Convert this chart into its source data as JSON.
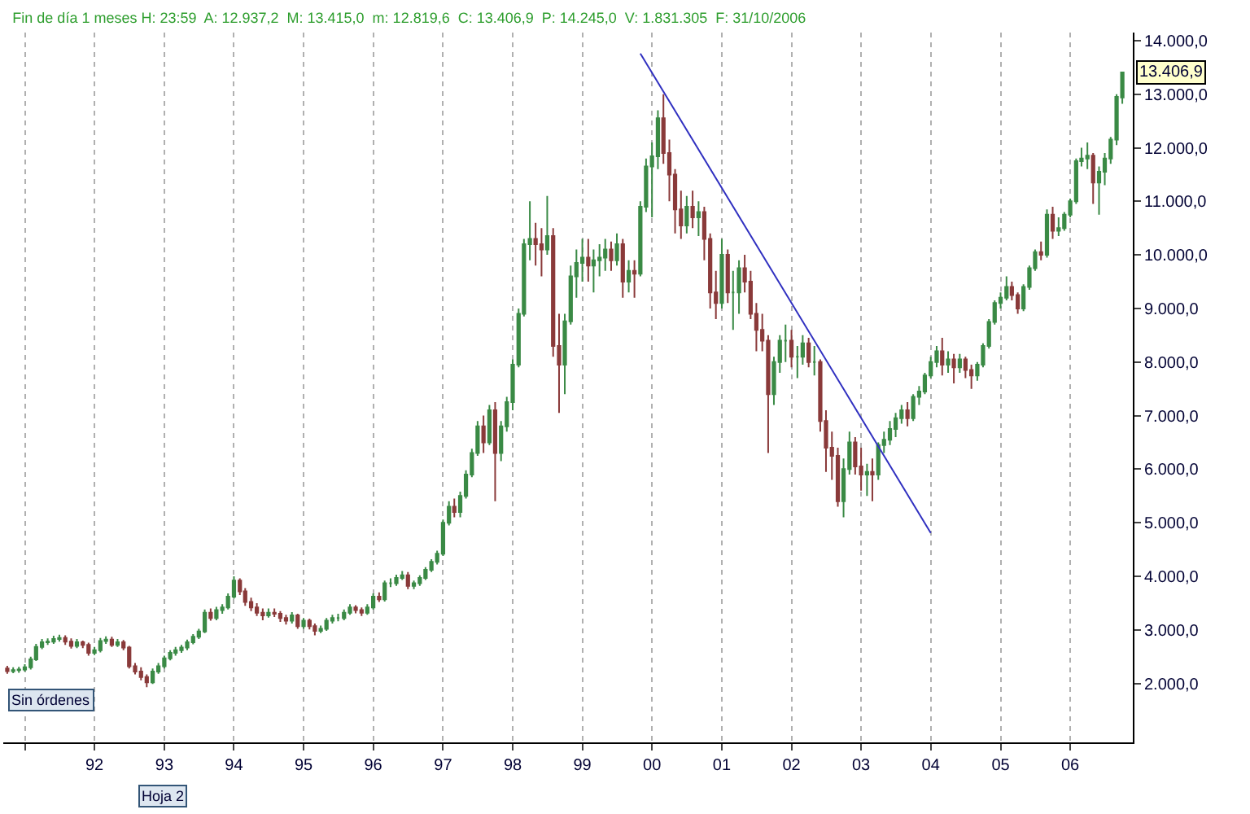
{
  "chart_data": {
    "type": "candlestick",
    "title": "Fin de día 1 meses H: 23:59  A: 12.937,2  M: 13.415,0  m: 12.819,6  C: 13.406,9  P: 14.245,0  V: 1.831.305  F: 31/10/2006",
    "x": [
      "1990-10",
      "1990-11",
      "1990-12",
      "1991-01",
      "1991-02",
      "1991-03",
      "1991-04",
      "1991-05",
      "1991-06",
      "1991-07",
      "1991-08",
      "1991-09",
      "1991-10",
      "1991-11",
      "1991-12",
      "1992-01",
      "1992-02",
      "1992-03",
      "1992-04",
      "1992-05",
      "1992-06",
      "1992-07",
      "1992-08",
      "1992-09",
      "1992-10",
      "1992-11",
      "1992-12",
      "1993-01",
      "1993-02",
      "1993-03",
      "1993-04",
      "1993-05",
      "1993-06",
      "1993-07",
      "1993-08",
      "1993-09",
      "1993-10",
      "1993-11",
      "1993-12",
      "1994-01",
      "1994-02",
      "1994-03",
      "1994-04",
      "1994-05",
      "1994-06",
      "1994-07",
      "1994-08",
      "1994-09",
      "1994-10",
      "1994-11",
      "1994-12",
      "1995-01",
      "1995-02",
      "1995-03",
      "1995-04",
      "1995-05",
      "1995-06",
      "1995-07",
      "1995-08",
      "1995-09",
      "1995-10",
      "1995-11",
      "1995-12",
      "1996-01",
      "1996-02",
      "1996-03",
      "1996-04",
      "1996-05",
      "1996-06",
      "1996-07",
      "1996-08",
      "1996-09",
      "1996-10",
      "1996-11",
      "1996-12",
      "1997-01",
      "1997-02",
      "1997-03",
      "1997-04",
      "1997-05",
      "1997-06",
      "1997-07",
      "1997-08",
      "1997-09",
      "1997-10",
      "1997-11",
      "1997-12",
      "1998-01",
      "1998-02",
      "1998-03",
      "1998-04",
      "1998-05",
      "1998-06",
      "1998-07",
      "1998-08",
      "1998-09",
      "1998-10",
      "1998-11",
      "1998-12",
      "1999-01",
      "1999-02",
      "1999-03",
      "1999-04",
      "1999-05",
      "1999-06",
      "1999-07",
      "1999-08",
      "1999-09",
      "1999-10",
      "1999-11",
      "1999-12",
      "2000-01",
      "2000-02",
      "2000-03",
      "2000-04",
      "2000-05",
      "2000-06",
      "2000-07",
      "2000-08",
      "2000-09",
      "2000-10",
      "2000-11",
      "2000-12",
      "2001-01",
      "2001-02",
      "2001-03",
      "2001-04",
      "2001-05",
      "2001-06",
      "2001-07",
      "2001-08",
      "2001-09",
      "2001-10",
      "2001-11",
      "2001-12",
      "2002-01",
      "2002-02",
      "2002-03",
      "2002-04",
      "2002-05",
      "2002-06",
      "2002-07",
      "2002-08",
      "2002-09",
      "2002-10",
      "2002-11",
      "2002-12",
      "2003-01",
      "2003-02",
      "2003-03",
      "2003-04",
      "2003-05",
      "2003-06",
      "2003-07",
      "2003-08",
      "2003-09",
      "2003-10",
      "2003-11",
      "2003-12",
      "2004-01",
      "2004-02",
      "2004-03",
      "2004-04",
      "2004-05",
      "2004-06",
      "2004-07",
      "2004-08",
      "2004-09",
      "2004-10",
      "2004-11",
      "2004-12",
      "2005-01",
      "2005-02",
      "2005-03",
      "2005-04",
      "2005-05",
      "2005-06",
      "2005-07",
      "2005-08",
      "2005-09",
      "2005-10",
      "2005-11",
      "2005-12",
      "2006-01",
      "2006-02",
      "2006-03",
      "2006-04",
      "2006-05",
      "2006-06",
      "2006-07",
      "2006-08",
      "2006-09",
      "2006-10"
    ],
    "ohlc": [
      [
        2280,
        2330,
        2180,
        2230
      ],
      [
        2230,
        2300,
        2190,
        2250
      ],
      [
        2250,
        2310,
        2200,
        2260
      ],
      [
        2260,
        2360,
        2220,
        2300
      ],
      [
        2300,
        2500,
        2260,
        2450
      ],
      [
        2450,
        2740,
        2420,
        2680
      ],
      [
        2680,
        2830,
        2640,
        2770
      ],
      [
        2770,
        2840,
        2720,
        2780
      ],
      [
        2780,
        2890,
        2740,
        2830
      ],
      [
        2830,
        2910,
        2780,
        2850
      ],
      [
        2850,
        2900,
        2720,
        2780
      ],
      [
        2780,
        2840,
        2650,
        2700
      ],
      [
        2700,
        2830,
        2660,
        2770
      ],
      [
        2770,
        2800,
        2660,
        2720
      ],
      [
        2720,
        2760,
        2520,
        2570
      ],
      [
        2570,
        2680,
        2530,
        2620
      ],
      [
        2620,
        2850,
        2580,
        2790
      ],
      [
        2790,
        2880,
        2740,
        2820
      ],
      [
        2820,
        2870,
        2680,
        2720
      ],
      [
        2720,
        2830,
        2680,
        2770
      ],
      [
        2770,
        2810,
        2620,
        2670
      ],
      [
        2670,
        2700,
        2280,
        2320
      ],
      [
        2320,
        2380,
        2170,
        2220
      ],
      [
        2220,
        2300,
        2060,
        2120
      ],
      [
        2120,
        2170,
        1930,
        2020
      ],
      [
        2020,
        2280,
        1990,
        2220
      ],
      [
        2220,
        2380,
        2180,
        2320
      ],
      [
        2320,
        2520,
        2280,
        2470
      ],
      [
        2470,
        2620,
        2430,
        2570
      ],
      [
        2570,
        2680,
        2520,
        2620
      ],
      [
        2620,
        2720,
        2570,
        2670
      ],
      [
        2670,
        2820,
        2620,
        2770
      ],
      [
        2770,
        2920,
        2730,
        2870
      ],
      [
        2870,
        3020,
        2830,
        2970
      ],
      [
        2970,
        3380,
        2940,
        3320
      ],
      [
        3320,
        3400,
        3170,
        3220
      ],
      [
        3220,
        3430,
        3180,
        3370
      ],
      [
        3370,
        3480,
        3300,
        3420
      ],
      [
        3420,
        3680,
        3380,
        3620
      ],
      [
        3620,
        4000,
        3580,
        3920
      ],
      [
        3920,
        3960,
        3650,
        3720
      ],
      [
        3720,
        3780,
        3450,
        3520
      ],
      [
        3520,
        3600,
        3350,
        3420
      ],
      [
        3420,
        3500,
        3260,
        3320
      ],
      [
        3320,
        3400,
        3180,
        3270
      ],
      [
        3270,
        3400,
        3230,
        3320
      ],
      [
        3320,
        3400,
        3240,
        3300
      ],
      [
        3300,
        3350,
        3150,
        3220
      ],
      [
        3220,
        3280,
        3100,
        3170
      ],
      [
        3170,
        3330,
        3120,
        3270
      ],
      [
        3270,
        3300,
        3020,
        3070
      ],
      [
        3070,
        3220,
        3020,
        3170
      ],
      [
        3170,
        3210,
        3010,
        3070
      ],
      [
        3070,
        3120,
        2900,
        2980
      ],
      [
        2980,
        3080,
        2940,
        3020
      ],
      [
        3020,
        3220,
        2980,
        3170
      ],
      [
        3170,
        3280,
        3120,
        3220
      ],
      [
        3220,
        3300,
        3160,
        3220
      ],
      [
        3220,
        3380,
        3180,
        3320
      ],
      [
        3320,
        3480,
        3280,
        3420
      ],
      [
        3420,
        3460,
        3310,
        3370
      ],
      [
        3370,
        3420,
        3260,
        3320
      ],
      [
        3320,
        3480,
        3280,
        3420
      ],
      [
        3420,
        3680,
        3380,
        3620
      ],
      [
        3620,
        3700,
        3520,
        3570
      ],
      [
        3570,
        3920,
        3530,
        3870
      ],
      [
        3870,
        3960,
        3800,
        3870
      ],
      [
        3870,
        4030,
        3820,
        3970
      ],
      [
        3970,
        4100,
        3930,
        4020
      ],
      [
        4020,
        4080,
        3760,
        3820
      ],
      [
        3820,
        3920,
        3760,
        3870
      ],
      [
        3870,
        4020,
        3820,
        3970
      ],
      [
        3970,
        4170,
        3930,
        4120
      ],
      [
        4120,
        4320,
        4080,
        4270
      ],
      [
        4270,
        4480,
        4220,
        4420
      ],
      [
        4420,
        5060,
        4380,
        5000
      ],
      [
        5000,
        5400,
        4950,
        5300
      ],
      [
        5300,
        5450,
        5100,
        5200
      ],
      [
        5200,
        5580,
        5100,
        5500
      ],
      [
        5500,
        5980,
        5450,
        5900
      ],
      [
        5900,
        6380,
        5850,
        6300
      ],
      [
        6300,
        6900,
        6250,
        6800
      ],
      [
        6800,
        7000,
        6300,
        6500
      ],
      [
        6500,
        7200,
        6450,
        7100
      ],
      [
        7100,
        7250,
        5400,
        6300
      ],
      [
        6300,
        6900,
        6150,
        6800
      ],
      [
        6800,
        7350,
        6700,
        7250
      ],
      [
        7250,
        8050,
        7100,
        7950
      ],
      [
        7950,
        9000,
        7900,
        8900
      ],
      [
        8900,
        10300,
        8850,
        10200
      ],
      [
        10200,
        11000,
        9900,
        10300
      ],
      [
        10300,
        10600,
        9800,
        10200
      ],
      [
        10200,
        10500,
        9600,
        10100
      ],
      [
        10100,
        11100,
        10000,
        10350
      ],
      [
        10350,
        10500,
        8100,
        8300
      ],
      [
        8300,
        8900,
        7050,
        7950
      ],
      [
        7950,
        8900,
        7400,
        8760
      ],
      [
        8760,
        9800,
        8700,
        9600
      ],
      [
        9600,
        10100,
        9200,
        9850
      ],
      [
        9850,
        10300,
        9500,
        9950
      ],
      [
        9950,
        10300,
        9500,
        9800
      ],
      [
        9800,
        10100,
        9300,
        9900
      ],
      [
        9900,
        10200,
        9600,
        9950
      ],
      [
        9950,
        10300,
        9700,
        10100
      ],
      [
        10100,
        10250,
        9700,
        9900
      ],
      [
        9900,
        10400,
        9800,
        10200
      ],
      [
        10200,
        10300,
        9200,
        9500
      ],
      [
        9500,
        9900,
        9300,
        9700
      ],
      [
        9700,
        9900,
        9200,
        9650
      ],
      [
        9650,
        11000,
        9600,
        10900
      ],
      [
        10900,
        11800,
        10800,
        11650
      ],
      [
        11650,
        12100,
        10700,
        11840
      ],
      [
        11840,
        12700,
        11600,
        12550
      ],
      [
        12550,
        13000,
        11700,
        11900
      ],
      [
        11900,
        12150,
        11000,
        11500
      ],
      [
        11500,
        11600,
        10400,
        10850
      ],
      [
        10850,
        11200,
        10300,
        10550
      ],
      [
        10550,
        11100,
        10400,
        10900
      ],
      [
        10900,
        11200,
        10500,
        10700
      ],
      [
        10700,
        11000,
        10350,
        10800
      ],
      [
        10800,
        10900,
        9900,
        10300
      ],
      [
        10300,
        10400,
        9000,
        9300
      ],
      [
        9300,
        9700,
        8800,
        9100
      ],
      [
        9100,
        10300,
        9000,
        10000
      ],
      [
        10000,
        10100,
        9100,
        9300
      ],
      [
        9300,
        9700,
        8600,
        9300
      ],
      [
        9300,
        9900,
        8900,
        9750
      ],
      [
        9750,
        10000,
        9300,
        9500
      ],
      [
        9500,
        9700,
        8800,
        8900
      ],
      [
        8900,
        9100,
        8200,
        8600
      ],
      [
        8600,
        8900,
        8200,
        8400
      ],
      [
        8400,
        8500,
        6300,
        7400
      ],
      [
        7400,
        8100,
        7200,
        8000
      ],
      [
        8000,
        8500,
        7800,
        8400
      ],
      [
        8400,
        8700,
        8000,
        8400
      ],
      [
        8400,
        8600,
        7900,
        8100
      ],
      [
        8100,
        8300,
        7700,
        8100
      ],
      [
        8100,
        8500,
        7950,
        8350
      ],
      [
        8350,
        8450,
        7900,
        8000
      ],
      [
        8000,
        8300,
        7750,
        8000
      ],
      [
        8000,
        8050,
        6700,
        6900
      ],
      [
        6900,
        7100,
        5950,
        6400
      ],
      [
        6400,
        6700,
        5800,
        6250
      ],
      [
        6250,
        6400,
        5300,
        5400
      ],
      [
        5400,
        6200,
        5100,
        6000
      ],
      [
        6000,
        6700,
        5900,
        6500
      ],
      [
        6500,
        6600,
        5900,
        6050
      ],
      [
        6050,
        6400,
        5600,
        5900
      ],
      [
        5900,
        6100,
        5500,
        5950
      ],
      [
        5950,
        6200,
        5400,
        5900
      ],
      [
        5900,
        6500,
        5800,
        6450
      ],
      [
        6450,
        6700,
        6300,
        6550
      ],
      [
        6550,
        6900,
        6450,
        6750
      ],
      [
        6750,
        7050,
        6600,
        6950
      ],
      [
        6950,
        7200,
        6850,
        7100
      ],
      [
        7100,
        7250,
        6800,
        6950
      ],
      [
        6950,
        7400,
        6900,
        7350
      ],
      [
        7350,
        7550,
        7200,
        7450
      ],
      [
        7450,
        7800,
        7400,
        7750
      ],
      [
        7750,
        8100,
        7700,
        8000
      ],
      [
        8000,
        8300,
        7900,
        8200
      ],
      [
        8200,
        8450,
        7750,
        7950
      ],
      [
        7950,
        8200,
        7800,
        8050
      ],
      [
        8050,
        8150,
        7600,
        7900
      ],
      [
        7900,
        8150,
        7800,
        8050
      ],
      [
        8050,
        8100,
        7700,
        7850
      ],
      [
        7850,
        7950,
        7500,
        7750
      ],
      [
        7750,
        8000,
        7650,
        7950
      ],
      [
        7950,
        8350,
        7900,
        8300
      ],
      [
        8300,
        8800,
        8250,
        8750
      ],
      [
        8750,
        9150,
        8700,
        9100
      ],
      [
        9100,
        9300,
        9000,
        9200
      ],
      [
        9200,
        9600,
        9150,
        9400
      ],
      [
        9400,
        9500,
        9150,
        9250
      ],
      [
        9250,
        9300,
        8900,
        9000
      ],
      [
        9000,
        9450,
        8950,
        9400
      ],
      [
        9400,
        9800,
        9350,
        9750
      ],
      [
        9750,
        10100,
        9700,
        10050
      ],
      [
        10050,
        10250,
        9900,
        10000
      ],
      [
        10000,
        10850,
        9950,
        10750
      ],
      [
        10750,
        10900,
        10300,
        10450
      ],
      [
        10450,
        10700,
        10350,
        10500
      ],
      [
        10500,
        10800,
        10450,
        10750
      ],
      [
        10750,
        11050,
        10700,
        11000
      ],
      [
        11000,
        11800,
        10950,
        11750
      ],
      [
        11750,
        12000,
        11650,
        11800
      ],
      [
        11800,
        12100,
        11600,
        11850
      ],
      [
        11850,
        11900,
        10950,
        11350
      ],
      [
        11350,
        11650,
        10750,
        11550
      ],
      [
        11550,
        11900,
        11300,
        11800
      ],
      [
        11800,
        12200,
        11700,
        12150
      ],
      [
        12150,
        13000,
        12050,
        12950
      ],
      [
        12937.2,
        13415,
        12819.6,
        13406.9
      ]
    ],
    "colors": [
      "#8a3a3a",
      "#3a8a45",
      "#3a8a45",
      "#3a8a45",
      "#3a8a45",
      "#3a8a45",
      "#3a8a45",
      "#3a8a45",
      "#3a8a45",
      "#3a8a45",
      "#8a3a3a",
      "#8a3a3a",
      "#3a8a45",
      "#8a3a3a",
      "#8a3a3a",
      "#3a8a45",
      "#3a8a45",
      "#3a8a45",
      "#8a3a3a",
      "#3a8a45",
      "#8a3a3a",
      "#8a3a3a",
      "#8a3a3a",
      "#8a3a3a",
      "#8a3a3a",
      "#3a8a45",
      "#3a8a45",
      "#3a8a45",
      "#3a8a45",
      "#3a8a45",
      "#3a8a45",
      "#3a8a45",
      "#3a8a45",
      "#3a8a45",
      "#3a8a45",
      "#8a3a3a",
      "#3a8a45",
      "#3a8a45",
      "#3a8a45",
      "#3a8a45",
      "#8a3a3a",
      "#8a3a3a",
      "#8a3a3a",
      "#8a3a3a",
      "#8a3a3a",
      "#3a8a45",
      "#8a3a3a",
      "#8a3a3a",
      "#8a3a3a",
      "#3a8a45",
      "#8a3a3a",
      "#3a8a45",
      "#8a3a3a",
      "#8a3a3a",
      "#3a8a45",
      "#3a8a45",
      "#3a8a45",
      "#3a8a45",
      "#3a8a45",
      "#3a8a45",
      "#8a3a3a",
      "#8a3a3a",
      "#3a8a45",
      "#3a8a45",
      "#8a3a3a",
      "#3a8a45",
      "#3a8a45",
      "#3a8a45",
      "#3a8a45",
      "#8a3a3a",
      "#3a8a45",
      "#3a8a45",
      "#3a8a45",
      "#3a8a45",
      "#3a8a45",
      "#3a8a45",
      "#3a8a45",
      "#8a3a3a",
      "#3a8a45",
      "#3a8a45",
      "#3a8a45",
      "#3a8a45",
      "#8a3a3a",
      "#3a8a45",
      "#8a3a3a",
      "#3a8a45",
      "#3a8a45",
      "#3a8a45",
      "#3a8a45",
      "#3a8a45",
      "#3a8a45",
      "#8a3a3a",
      "#8a3a3a",
      "#3a8a45",
      "#8a3a3a",
      "#8a3a3a",
      "#3a8a45",
      "#3a8a45",
      "#3a8a45",
      "#3a8a45",
      "#8a3a3a",
      "#3a8a45",
      "#3a8a45",
      "#3a8a45",
      "#8a3a3a",
      "#3a8a45",
      "#8a3a3a",
      "#3a8a45",
      "#8a3a3a",
      "#3a8a45",
      "#3a8a45",
      "#3a8a45",
      "#3a8a45",
      "#8a3a3a",
      "#8a3a3a",
      "#8a3a3a",
      "#8a3a3a",
      "#3a8a45",
      "#8a3a3a",
      "#3a8a45",
      "#8a3a3a",
      "#8a3a3a",
      "#8a3a3a",
      "#3a8a45",
      "#8a3a3a",
      "#3a8a45",
      "#3a8a45",
      "#8a3a3a",
      "#8a3a3a",
      "#8a3a3a",
      "#8a3a3a",
      "#8a3a3a",
      "#3a8a45",
      "#3a8a45",
      "#3a8a45",
      "#8a3a3a",
      "#3a8a45",
      "#3a8a45",
      "#8a3a3a",
      "#3a8a45",
      "#8a3a3a",
      "#8a3a3a",
      "#8a3a3a",
      "#8a3a3a",
      "#3a8a45",
      "#3a8a45",
      "#8a3a3a",
      "#8a3a3a",
      "#3a8a45",
      "#8a3a3a",
      "#3a8a45",
      "#3a8a45",
      "#3a8a45",
      "#3a8a45",
      "#3a8a45",
      "#8a3a3a",
      "#3a8a45",
      "#3a8a45",
      "#3a8a45",
      "#3a8a45",
      "#3a8a45",
      "#8a3a3a",
      "#3a8a45",
      "#8a3a3a",
      "#3a8a45",
      "#8a3a3a",
      "#8a3a3a",
      "#3a8a45",
      "#3a8a45",
      "#3a8a45",
      "#3a8a45",
      "#3a8a45",
      "#3a8a45",
      "#8a3a3a",
      "#8a3a3a",
      "#3a8a45",
      "#3a8a45",
      "#3a8a45",
      "#8a3a3a",
      "#3a8a45",
      "#8a3a3a",
      "#3a8a45",
      "#3a8a45",
      "#3a8a45",
      "#3a8a45",
      "#3a8a45",
      "#3a8a45",
      "#8a3a3a",
      "#3a8a45",
      "#3a8a45",
      "#3a8a45",
      "#3a8a45",
      "#3a8a45"
    ],
    "series": [
      {
        "type": "line",
        "color": "#3030c0",
        "x": [
          "1999-11",
          "2004-01"
        ],
        "values": [
          13760,
          4810
        ]
      }
    ],
    "xlim": [
      "1990-09-10",
      "2006-11-25"
    ],
    "xticks": [
      {
        "value": "1991-01",
        "label": null
      },
      {
        "value": "1992-01",
        "label": "92"
      },
      {
        "value": "1993-01",
        "label": "93"
      },
      {
        "value": "1994-01",
        "label": "94"
      },
      {
        "value": "1995-01",
        "label": "95"
      },
      {
        "value": "1996-01",
        "label": "96"
      },
      {
        "value": "1997-01",
        "label": "97"
      },
      {
        "value": "1998-01",
        "label": "98"
      },
      {
        "value": "1999-01",
        "label": "99"
      },
      {
        "value": "2000-01",
        "label": "00"
      },
      {
        "value": "2001-01",
        "label": "01"
      },
      {
        "value": "2002-01",
        "label": "02"
      },
      {
        "value": "2003-01",
        "label": "03"
      },
      {
        "value": "2004-01",
        "label": "04"
      },
      {
        "value": "2005-01",
        "label": "05"
      },
      {
        "value": "2006-01",
        "label": "06"
      }
    ],
    "ylim": [
      900,
      14150
    ],
    "yticks": [
      {
        "value": 2000,
        "label": "2.000,0"
      },
      {
        "value": 3000,
        "label": "3.000,0"
      },
      {
        "value": 4000,
        "label": "4.000,0"
      },
      {
        "value": 5000,
        "label": "5.000,0"
      },
      {
        "value": 6000,
        "label": "6.000,0"
      },
      {
        "value": 7000,
        "label": "7.000,0"
      },
      {
        "value": 8000,
        "label": "8.000,0"
      },
      {
        "value": 9000,
        "label": "9.000,0"
      },
      {
        "value": 10000,
        "label": "10.000,0"
      },
      {
        "value": 11000,
        "label": "11.000,0"
      },
      {
        "value": 12000,
        "label": "12.000,0"
      },
      {
        "value": 13000,
        "label": "13.000,0"
      },
      {
        "value": 14000,
        "label": "14.000,0"
      }
    ],
    "grid": "x",
    "annotations": [
      {
        "text": "13.406,9",
        "x": "2006-10",
        "y": 13406.9
      },
      "Sin órdenes",
      "Hoja 2"
    ]
  }
}
